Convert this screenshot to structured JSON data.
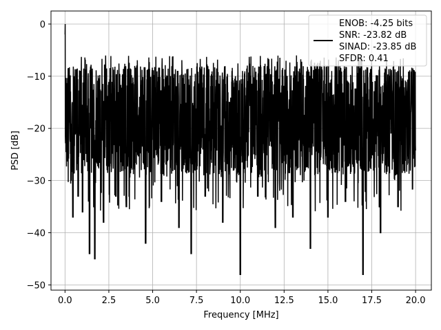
{
  "chart_data": {
    "type": "line",
    "title": "",
    "xlabel": "Frequency [MHz]",
    "ylabel": "PSD [dB]",
    "xlim": [
      -0.8,
      20.9
    ],
    "ylim": [
      -51,
      2.5
    ],
    "xticks": [
      0.0,
      2.5,
      5.0,
      7.5,
      10.0,
      12.5,
      15.0,
      17.5,
      20.0
    ],
    "xtick_labels": [
      "0.0",
      "2.5",
      "5.0",
      "7.5",
      "10.0",
      "12.5",
      "15.0",
      "17.5",
      "20.0"
    ],
    "yticks": [
      0,
      -10,
      -20,
      -30,
      -40,
      -50
    ],
    "ytick_labels": [
      "0",
      "−10",
      "−20",
      "−30",
      "−40",
      "−50"
    ],
    "grid": true,
    "legend_position": "top-right",
    "legend_entries": [
      "ENOB: -4.25 bits",
      "SNR: -23.82 dB",
      "SINAD: -23.85 dB",
      "SFDR: 0.41"
    ],
    "series_color": "#000000",
    "series": [
      {
        "description_values": "dense noise floor PSD; approximate envelope samples (MHz, dB)",
        "x": [
          0.0,
          0.02,
          0.05,
          0.1,
          0.2,
          0.3,
          0.45,
          0.6,
          0.75,
          0.9,
          1.0,
          1.2,
          1.4,
          1.6,
          1.7,
          1.9,
          2.2,
          2.5,
          2.9,
          3.2,
          3.5,
          4.0,
          4.6,
          5.0,
          5.5,
          6.0,
          6.5,
          7.0,
          7.2,
          7.5,
          8.0,
          8.5,
          9.0,
          9.6,
          10.0,
          10.5,
          11.0,
          11.7,
          12.0,
          12.5,
          13.0,
          13.5,
          14.0,
          14.5,
          15.0,
          15.5,
          16.0,
          16.5,
          17.0,
          17.5,
          18.0,
          18.5,
          19.0,
          19.5,
          20.0
        ],
        "y": [
          -2,
          0,
          -27,
          -9,
          -30,
          -12,
          -37,
          -10,
          -33,
          -11,
          -36,
          -14,
          -44,
          -12,
          -45,
          -10,
          -38,
          -13,
          -33,
          -9,
          -35,
          -8,
          -42,
          -9,
          -34,
          -8,
          -39,
          -10,
          -44,
          -9,
          -33,
          -11,
          -38,
          -10,
          -48,
          -11,
          -33,
          -12,
          -39,
          -9,
          -37,
          -10,
          -43,
          -9,
          -37,
          -10,
          -34,
          -9,
          -48,
          -10,
          -40,
          -11,
          -35,
          -10,
          -30
        ]
      }
    ]
  }
}
